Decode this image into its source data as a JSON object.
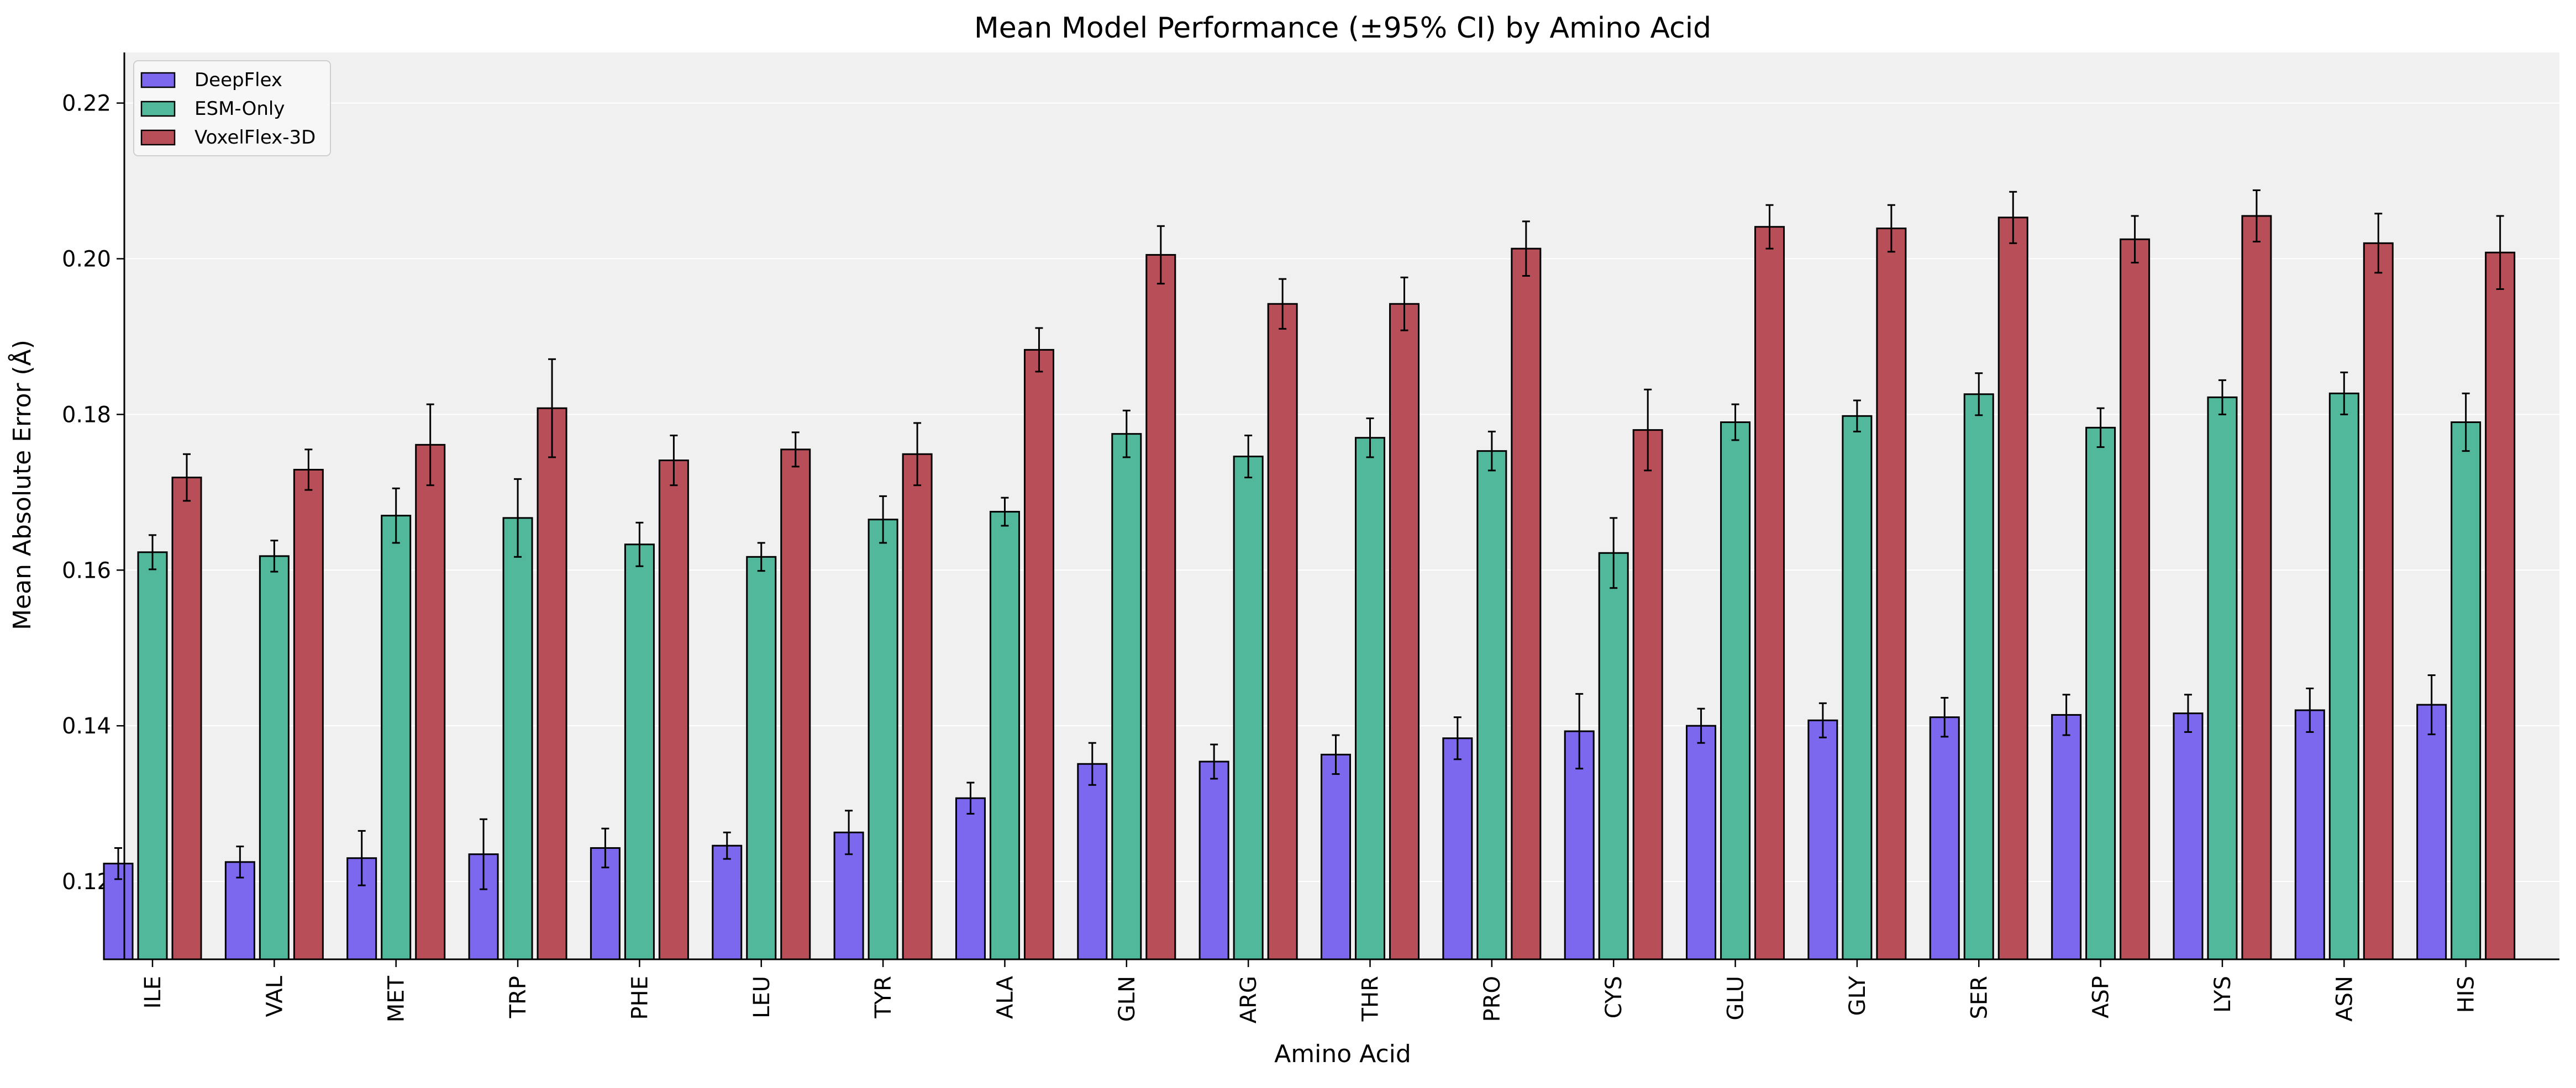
{
  "chart_data": {
    "type": "bar",
    "title": "Mean Model Performance (±95% CI) by Amino Acid",
    "xlabel": "Amino Acid",
    "ylabel": "Mean Absolute Error (Å)",
    "ylim": [
      0.11,
      0.2265
    ],
    "yticks": [
      "0.12",
      "0.14",
      "0.16",
      "0.18",
      "0.20",
      "0.22"
    ],
    "grid": true,
    "legend_position": "top-left",
    "categories": [
      "ILE",
      "VAL",
      "MET",
      "TRP",
      "PHE",
      "LEU",
      "TYR",
      "ALA",
      "GLN",
      "ARG",
      "THR",
      "PRO",
      "CYS",
      "GLU",
      "GLY",
      "SER",
      "ASP",
      "LYS",
      "ASN",
      "HIS"
    ],
    "series": [
      {
        "name": "DeepFlex",
        "color": "#7b68ee",
        "values": [
          0.1223,
          0.1225,
          0.123,
          0.1235,
          0.1243,
          0.1246,
          0.1263,
          0.1307,
          0.1351,
          0.1354,
          0.1363,
          0.1384,
          0.1393,
          0.14,
          0.1407,
          0.1411,
          0.1414,
          0.1416,
          0.142,
          0.1427
        ],
        "ci": [
          0.002,
          0.002,
          0.0035,
          0.0045,
          0.0025,
          0.0017,
          0.0028,
          0.002,
          0.0027,
          0.0022,
          0.0025,
          0.0027,
          0.0048,
          0.0022,
          0.0022,
          0.0025,
          0.0026,
          0.0024,
          0.0028,
          0.0038
        ]
      },
      {
        "name": "ESM-Only",
        "color": "#52b89c",
        "values": [
          0.1623,
          0.1618,
          0.167,
          0.1667,
          0.1633,
          0.1617,
          0.1665,
          0.1675,
          0.1775,
          0.1746,
          0.177,
          0.1753,
          0.1622,
          0.179,
          0.1798,
          0.1826,
          0.1783,
          0.1822,
          0.1827,
          0.179
        ],
        "ci": [
          0.0022,
          0.002,
          0.0035,
          0.005,
          0.0028,
          0.0018,
          0.003,
          0.0018,
          0.003,
          0.0027,
          0.0025,
          0.0025,
          0.0045,
          0.0023,
          0.002,
          0.0027,
          0.0025,
          0.0022,
          0.0027,
          0.0037
        ]
      },
      {
        "name": "VoxelFlex-3D",
        "color": "#b84f58",
        "values": [
          0.1719,
          0.1729,
          0.1761,
          0.1808,
          0.1741,
          0.1755,
          0.1749,
          0.1883,
          0.2005,
          0.1942,
          0.1942,
          0.2013,
          0.178,
          0.2041,
          0.2039,
          0.2053,
          0.2025,
          0.2055,
          0.202,
          0.2008
        ],
        "ci": [
          0.003,
          0.0026,
          0.0052,
          0.0063,
          0.0032,
          0.0022,
          0.004,
          0.0028,
          0.0037,
          0.0032,
          0.0034,
          0.0035,
          0.0052,
          0.0028,
          0.003,
          0.0033,
          0.003,
          0.0033,
          0.0038,
          0.0047
        ]
      }
    ]
  }
}
